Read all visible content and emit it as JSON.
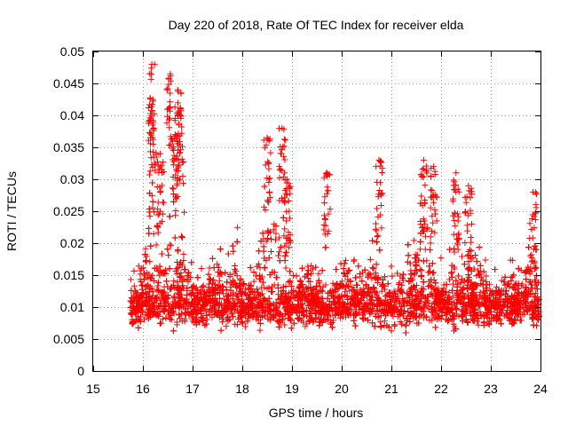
{
  "chart_data": {
    "type": "scatter",
    "title": "Day 220 of 2018, Rate Of TEC Index for receiver elda",
    "xlabel": "GPS time / hours",
    "ylabel": "ROTI / TECUs",
    "xlim": [
      15,
      24
    ],
    "ylim": [
      0,
      0.05
    ],
    "x_ticks": [
      "15",
      "16",
      "17",
      "18",
      "19",
      "20",
      "21",
      "22",
      "23",
      "24"
    ],
    "y_ticks": [
      "0",
      "0.005",
      "0.01",
      "0.015",
      "0.02",
      "0.025",
      "0.03",
      "0.035",
      "0.04",
      "0.045",
      "0.05"
    ],
    "grid": true,
    "marker": "+",
    "series_color": "#ff0000",
    "x_start": 15.75,
    "x_end": 24.0,
    "typical_level": 0.01,
    "peaks": [
      {
        "x": 16.18,
        "y": 0.048
      },
      {
        "x": 16.55,
        "y": 0.0465
      },
      {
        "x": 16.7,
        "y": 0.044
      },
      {
        "x": 16.2,
        "y": 0.0425
      },
      {
        "x": 16.75,
        "y": 0.041
      },
      {
        "x": 16.65,
        "y": 0.037
      },
      {
        "x": 18.5,
        "y": 0.0365
      },
      {
        "x": 18.8,
        "y": 0.038
      },
      {
        "x": 16.35,
        "y": 0.034
      },
      {
        "x": 19.7,
        "y": 0.031
      },
      {
        "x": 20.75,
        "y": 0.033
      },
      {
        "x": 21.65,
        "y": 0.033
      },
      {
        "x": 21.85,
        "y": 0.032
      },
      {
        "x": 22.3,
        "y": 0.031
      },
      {
        "x": 22.55,
        "y": 0.029
      },
      {
        "x": 23.85,
        "y": 0.028
      },
      {
        "x": 18.9,
        "y": 0.03
      }
    ]
  }
}
